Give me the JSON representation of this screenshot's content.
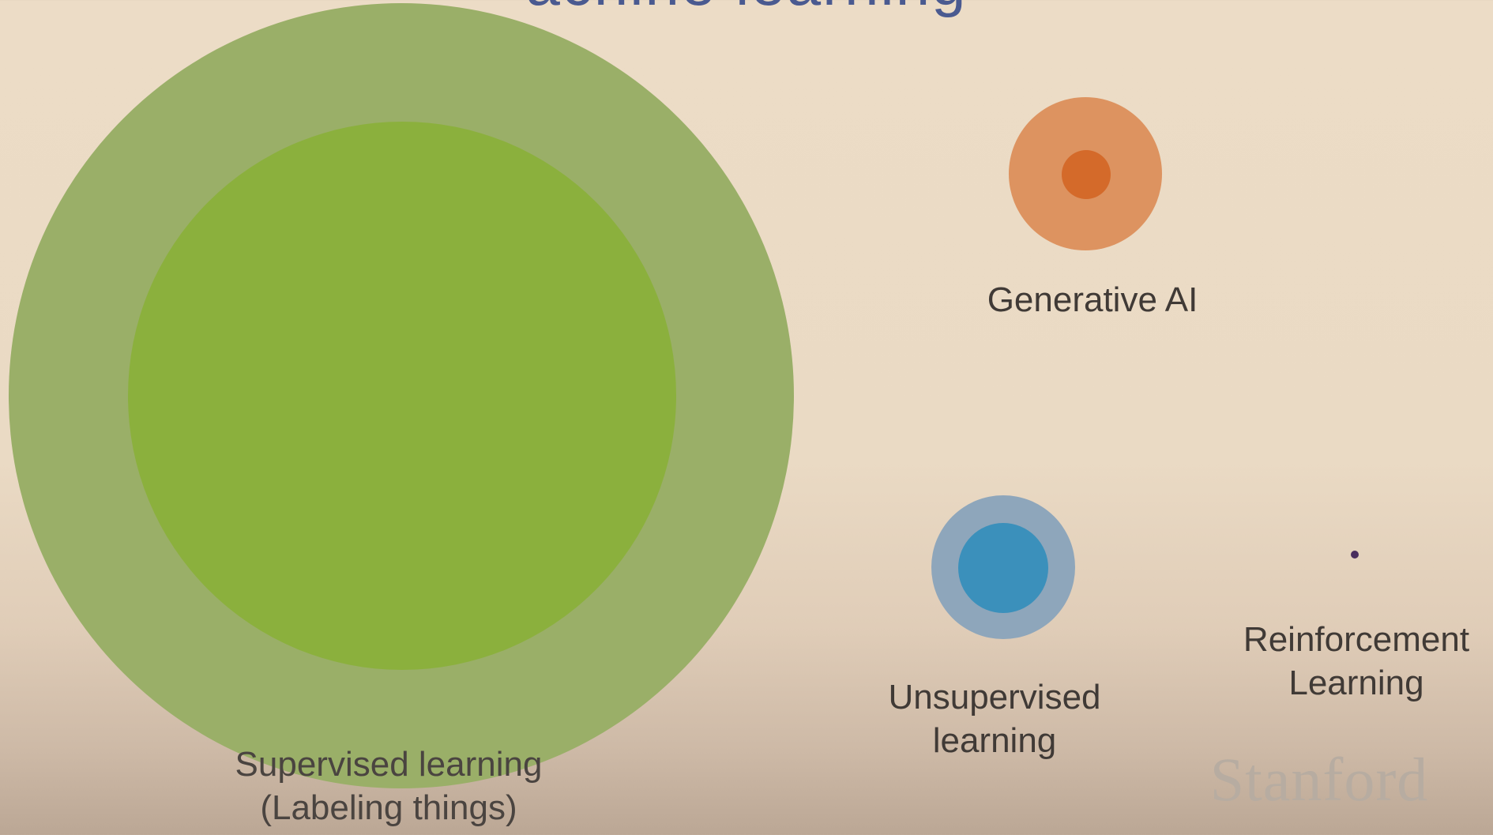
{
  "title_partial": "achine learning",
  "nodes": [
    {
      "id": "supervised",
      "label_lines": [
        "Supervised learning",
        "(Labeling things)"
      ],
      "colors": {
        "outer": "#9aaf68",
        "inner": "#8bb03d"
      }
    },
    {
      "id": "generative_ai",
      "label_lines": [
        "Generative AI"
      ],
      "colors": {
        "outer": "#dd9360",
        "inner": "#d46a2a"
      }
    },
    {
      "id": "unsupervised",
      "label_lines": [
        "Unsupervised",
        "learning"
      ],
      "colors": {
        "outer": "#8ea6bb",
        "inner": "#3b90bb"
      }
    },
    {
      "id": "reinforcement",
      "label_lines": [
        "Reinforcement",
        "Learning"
      ],
      "colors": {
        "inner": "#4a2e5e"
      }
    }
  ],
  "logo": "Stanford",
  "background": "#ecdcc6"
}
